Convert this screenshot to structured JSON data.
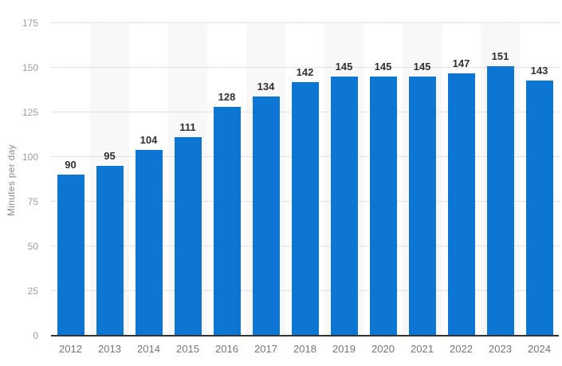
{
  "chart_data": {
    "type": "bar",
    "categories": [
      "2012",
      "2013",
      "2014",
      "2015",
      "2016",
      "2017",
      "2018",
      "2019",
      "2020",
      "2021",
      "2022",
      "2023",
      "2024"
    ],
    "values": [
      90,
      95,
      104,
      111,
      128,
      134,
      142,
      145,
      145,
      145,
      147,
      151,
      143
    ],
    "title": "",
    "xlabel": "",
    "ylabel": "Minutes per day",
    "ylim": [
      0,
      175
    ],
    "yticks": [
      0,
      25,
      50,
      75,
      100,
      125,
      150,
      175
    ],
    "grid": "horizontal-dotted",
    "legend": "none",
    "data_labels": "above bars",
    "striped_columns": "alternating, starting with second category",
    "colors": {
      "bar": "#0d76d3",
      "value_label": "#303030",
      "y_tick_label": "#9e9ea2",
      "x_tick_label": "#76767a",
      "gridline": "#cccccc",
      "column_stripe": "#f8f8f8",
      "axis_line": "#333333",
      "background": "#ffffff"
    }
  }
}
